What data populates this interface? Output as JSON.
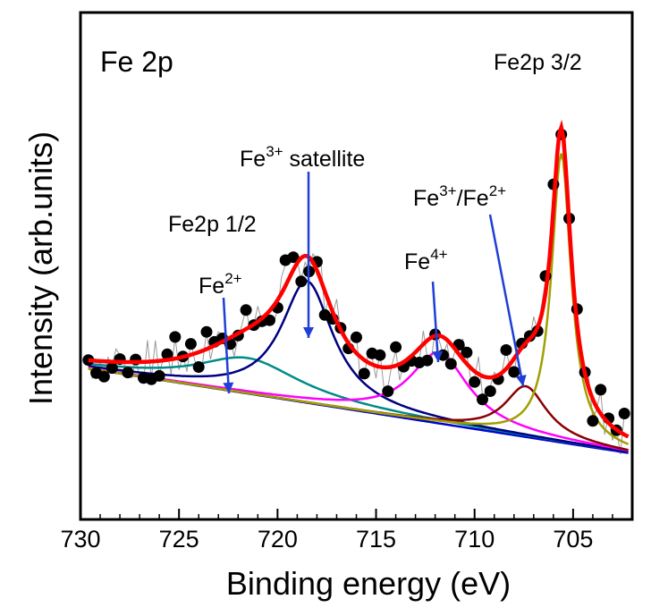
{
  "chart_data": {
    "type": "line",
    "panel_label": "Fe 2p",
    "xlabel": "Binding energy (eV)",
    "ylabel": "Intensity (arb.units)",
    "xlim": [
      730,
      702
    ],
    "ylim": [
      0,
      100
    ],
    "x_reversed": true,
    "x_ticks": [
      730,
      725,
      720,
      715,
      710,
      705
    ],
    "show_y_ticks": false,
    "grid": false,
    "colors": {
      "fit_envelope": "#ff0000",
      "fe2_component": "#008b8b",
      "fe3_satellite": "#000080",
      "fe4_component": "#ff00ff",
      "fe3_fe2_component": "#8b0000",
      "fe2p32_component": "#a0a000",
      "background": "#0000cd",
      "raw_line": "#999999",
      "points": "#000000",
      "arrow": "#1f3fd6"
    },
    "peaks": [
      {
        "key": "fe2_component",
        "center": 721.5,
        "amp": 7,
        "width": 3.2
      },
      {
        "key": "fe3_satellite",
        "center": 718.5,
        "amp": 24,
        "width": 1.6
      },
      {
        "key": "fe4_component",
        "center": 711.8,
        "amp": 14,
        "width": 1.8
      },
      {
        "key": "fe3_fe2_component",
        "center": 707.4,
        "amp": 10,
        "width": 1.3
      },
      {
        "key": "fe2p32_component",
        "center": 705.6,
        "amp": 57,
        "width": 0.6
      }
    ],
    "baseline": {
      "start": 30,
      "end": 13
    },
    "annotations": [
      {
        "label": "Fe2p 3/2",
        "sup": "",
        "suffix": ""
      },
      {
        "label": "Fe",
        "sup": "3+",
        "suffix": " satellite"
      },
      {
        "label": "Fe2p 1/2",
        "sup": "",
        "suffix": ""
      },
      {
        "label": "Fe",
        "sup": "2+",
        "suffix": ""
      },
      {
        "label": "Fe",
        "sup": "4+",
        "suffix": ""
      },
      {
        "label": "Fe",
        "sup": "3+",
        "suffix": "/Fe",
        "sup2": "2+"
      }
    ]
  }
}
